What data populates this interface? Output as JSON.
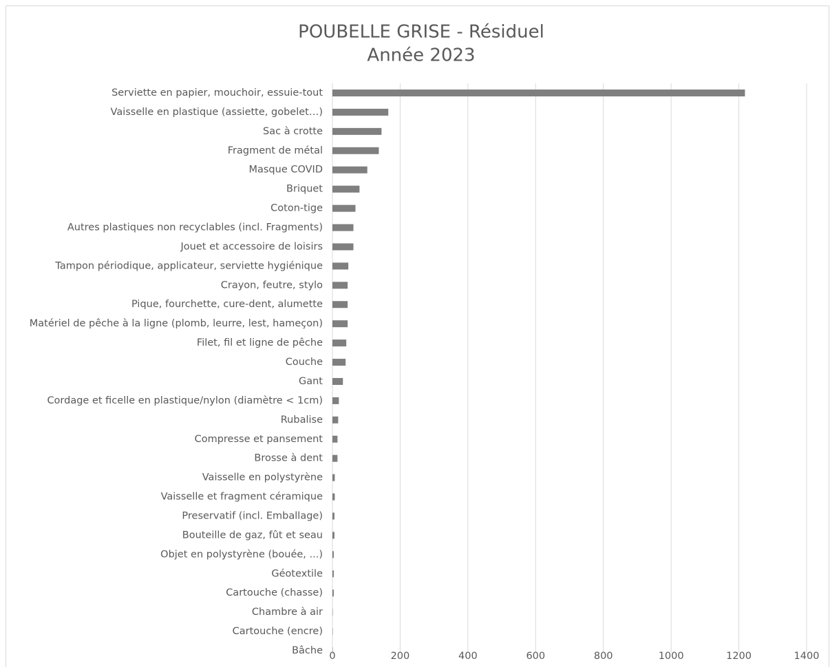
{
  "chart_data": {
    "type": "bar",
    "orientation": "horizontal",
    "title": [
      "POUBELLE GRISE - Résiduel",
      "Année 2023"
    ],
    "categories": [
      "Serviette en papier, mouchoir, essuie-tout",
      "Vaisselle en plastique (assiette, gobelet…)",
      "Sac à crotte",
      "Fragment de métal",
      "Masque COVID",
      "Briquet",
      "Coton-tige",
      "Autres plastiques non recyclables (incl. Fragments)",
      "Jouet et accessoire de loisirs",
      "Tampon périodique, applicateur, serviette hygiénique",
      "Crayon, feutre, stylo",
      "Pique, fourchette, cure-dent, alumette",
      "Matériel de pêche à la ligne (plomb, leurre, lest, hameçon)",
      "Filet, fil et ligne de pêche",
      "Couche",
      "Gant",
      "Cordage et ficelle en plastique/nylon (diamètre < 1cm)",
      "Rubalise",
      "Compresse et pansement",
      "Brosse à dent",
      "Vaisselle en polystyrène",
      "Vaisselle et fragment céramique",
      "Preservatif (incl. Emballage)",
      "Bouteille de gaz, fût et seau",
      "Objet en polystyrène (bouée, ...)",
      "Géotextile",
      "Cartouche (chasse)",
      "Chambre à air",
      "Cartouche (encre)",
      "Bâche"
    ],
    "values": [
      1218,
      165,
      145,
      137,
      103,
      80,
      68,
      62,
      62,
      47,
      45,
      45,
      45,
      41,
      39,
      31,
      19,
      17,
      15,
      15,
      7,
      7,
      6,
      6,
      4,
      4,
      4,
      1,
      1,
      1
    ],
    "color": "#7f7f7f",
    "xlim": [
      0,
      1400
    ],
    "xticks": [
      0,
      200,
      400,
      600,
      800,
      1000,
      1200,
      1400
    ],
    "grid": true
  }
}
